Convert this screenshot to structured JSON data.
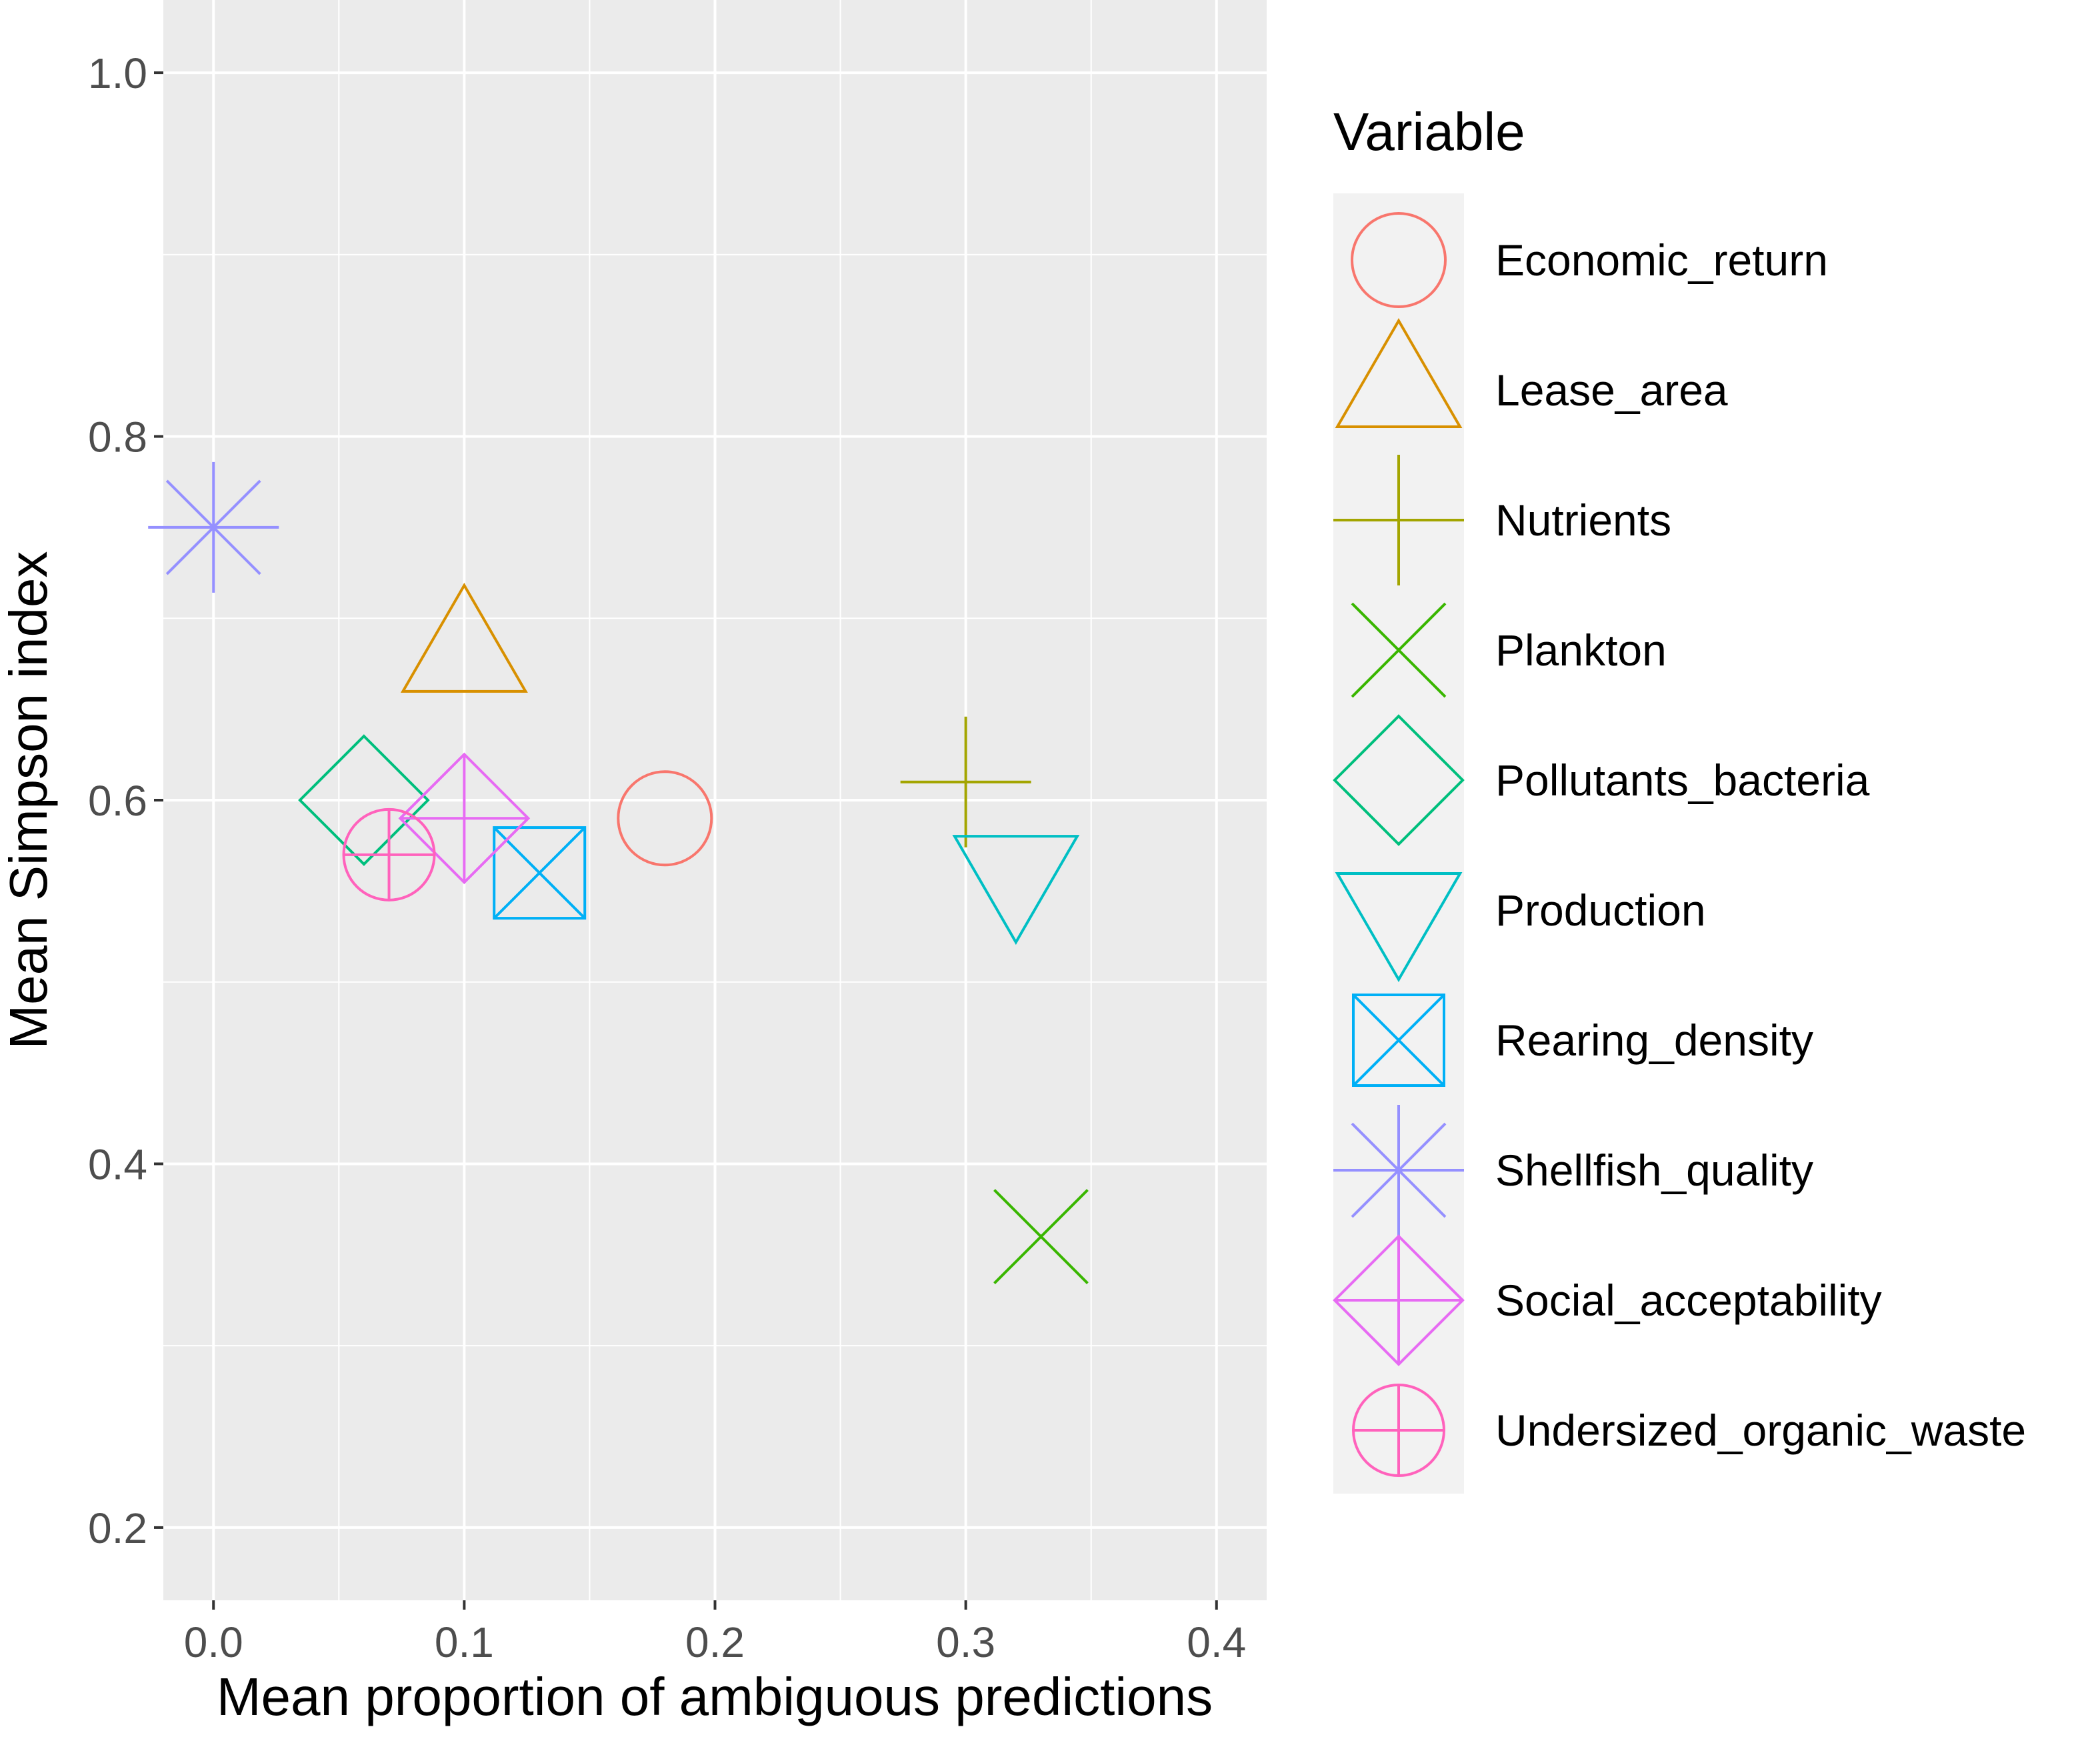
{
  "chart_data": {
    "type": "scatter",
    "title": "",
    "xlabel": "Mean proportion of ambiguous predictions",
    "ylabel": "Mean Simpson index",
    "xlim": [
      -0.02,
      0.42
    ],
    "ylim": [
      0.16,
      1.04
    ],
    "x_ticks": [
      0.0,
      0.1,
      0.2,
      0.3,
      0.4
    ],
    "x_tick_labels": [
      "0.0",
      "0.1",
      "0.2",
      "0.3",
      "0.4"
    ],
    "y_ticks": [
      0.2,
      0.4,
      0.6,
      0.8,
      1.0
    ],
    "y_tick_labels": [
      "0.2",
      "0.4",
      "0.6",
      "0.8",
      "1.0"
    ],
    "grid": true,
    "legend": {
      "title": "Variable",
      "position": "right"
    },
    "series": [
      {
        "name": "Economic_return",
        "x": 0.18,
        "y": 0.59,
        "shape": "circle",
        "color": "#F8766D"
      },
      {
        "name": "Lease_area",
        "x": 0.1,
        "y": 0.68,
        "shape": "triangle-up",
        "color": "#D89000"
      },
      {
        "name": "Nutrients",
        "x": 0.3,
        "y": 0.61,
        "shape": "plus",
        "color": "#A3A500"
      },
      {
        "name": "Plankton",
        "x": 0.33,
        "y": 0.36,
        "shape": "cross",
        "color": "#39B600"
      },
      {
        "name": "Pollutants_bacteria",
        "x": 0.06,
        "y": 0.6,
        "shape": "diamond",
        "color": "#00BF7D"
      },
      {
        "name": "Production",
        "x": 0.32,
        "y": 0.56,
        "shape": "triangle-down",
        "color": "#00BFC4"
      },
      {
        "name": "Rearing_density",
        "x": 0.13,
        "y": 0.56,
        "shape": "square-cross",
        "color": "#00B0F6"
      },
      {
        "name": "Shellfish_quality",
        "x": 0.0,
        "y": 0.75,
        "shape": "asterisk",
        "color": "#9590FF"
      },
      {
        "name": "Social_acceptability",
        "x": 0.1,
        "y": 0.59,
        "shape": "diamond-plus",
        "color": "#E76BF3"
      },
      {
        "name": "Undersized_organic_waste",
        "x": 0.07,
        "y": 0.57,
        "shape": "circle-plus",
        "color": "#FF62BC"
      }
    ]
  }
}
